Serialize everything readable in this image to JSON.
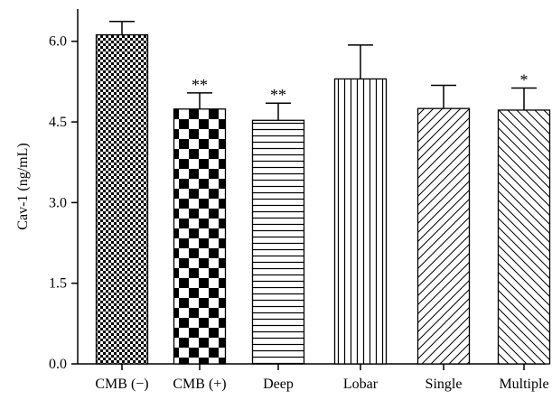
{
  "chart_data": {
    "type": "bar",
    "ylabel": "Cav-1 (ng/mL)",
    "xlabel": "",
    "ylim": [
      0,
      6.6
    ],
    "yticks": [
      "0.0",
      "1.5",
      "3.0",
      "4.5",
      "6.0"
    ],
    "ytick_values": [
      0,
      1.5,
      3.0,
      4.5,
      6.0
    ],
    "grid": false,
    "legend": "none",
    "categories": [
      "CMB (−)",
      "CMB (+)",
      "Deep",
      "Lobar",
      "Single",
      "Multiple"
    ],
    "values": [
      6.12,
      4.74,
      4.53,
      5.3,
      4.75,
      4.72
    ],
    "error_upper": [
      6.37,
      5.04,
      4.85,
      5.93,
      5.18,
      5.13
    ],
    "annotations": [
      "",
      "**",
      "**",
      "",
      "",
      "*"
    ],
    "patterns": [
      "fine-checker",
      "checkerboard",
      "horizontal-lines",
      "vertical-lines",
      "diagonal-up",
      "diagonal-down"
    ]
  }
}
